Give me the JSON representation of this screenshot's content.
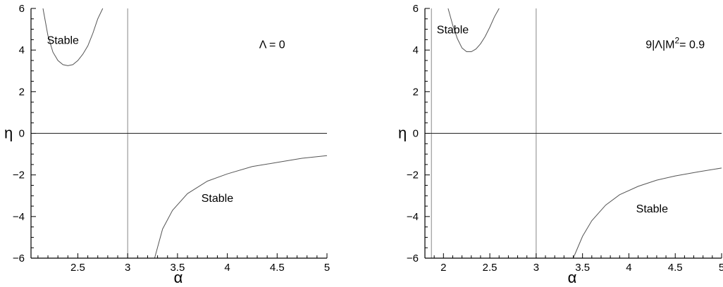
{
  "chart_data": [
    {
      "type": "line",
      "xlabel": "α",
      "ylabel": "η",
      "xlim": [
        2.03,
        5.0
      ],
      "ylim": [
        -6,
        6
      ],
      "x_ticks": [
        2.5,
        3,
        3.5,
        4,
        4.5,
        5
      ],
      "x_tick_labels": [
        "2.5",
        "3",
        "3.5",
        "4",
        "4.5",
        "5"
      ],
      "y_ticks": [
        -6,
        -4,
        -2,
        0,
        2,
        4,
        6
      ],
      "y_tick_labels": [
        "−6",
        "−4",
        "−2",
        "0",
        "2",
        "4",
        "6"
      ],
      "reference_lines": {
        "vertical_x": 3,
        "horizontal_y": 0
      },
      "annotations": [
        {
          "text": "Stable",
          "x": 2.35,
          "y": 4.5
        },
        {
          "text": "Λ = 0",
          "x": 4.45,
          "y": 4.3
        },
        {
          "text": "Stable",
          "x": 3.9,
          "y": -3.1
        }
      ],
      "series": [
        {
          "points": [
            [
              2.15,
              6.0
            ],
            [
              2.2,
              4.7
            ],
            [
              2.25,
              3.9
            ],
            [
              2.3,
              3.5
            ],
            [
              2.35,
              3.3
            ],
            [
              2.4,
              3.25
            ],
            [
              2.45,
              3.3
            ],
            [
              2.5,
              3.5
            ],
            [
              2.55,
              3.8
            ],
            [
              2.6,
              4.2
            ],
            [
              2.65,
              4.8
            ],
            [
              2.7,
              5.5
            ],
            [
              2.75,
              6.0
            ]
          ]
        },
        {
          "points": [
            [
              3.27,
              -6.0
            ],
            [
              3.35,
              -4.6
            ],
            [
              3.45,
              -3.7
            ],
            [
              3.6,
              -2.9
            ],
            [
              3.8,
              -2.3
            ],
            [
              4.0,
              -1.95
            ],
            [
              4.25,
              -1.6
            ],
            [
              4.5,
              -1.4
            ],
            [
              4.75,
              -1.2
            ],
            [
              5.0,
              -1.07
            ]
          ]
        }
      ]
    },
    {
      "type": "line",
      "xlabel": "α",
      "ylabel": "η",
      "xlim": [
        1.8,
        5.0
      ],
      "ylim": [
        -6,
        6
      ],
      "x_ticks": [
        2,
        2.5,
        3,
        3.5,
        4,
        4.5,
        5
      ],
      "x_tick_labels": [
        "2",
        "2.5",
        "3",
        "3.5",
        "4",
        "4.5",
        "5"
      ],
      "y_ticks": [
        -6,
        -4,
        -2,
        0,
        2,
        4,
        6
      ],
      "y_tick_labels": [
        "−6",
        "−4",
        "−2",
        "0",
        "2",
        "4",
        "6"
      ],
      "reference_lines": {
        "vertical_x": 3,
        "horizontal_y": 0,
        "extra_vertical_x": 1.87
      },
      "annotations": [
        {
          "text": "Stable",
          "x": 2.1,
          "y": 5.0
        },
        {
          "text": "9|Λ|M",
          "sup": "2",
          "suffix": "= 0.9",
          "x": 4.5,
          "y": 4.3
        },
        {
          "text": "Stable",
          "x": 4.25,
          "y": -3.6
        }
      ],
      "series": [
        {
          "points": [
            [
              2.05,
              6.0
            ],
            [
              2.1,
              5.2
            ],
            [
              2.15,
              4.55
            ],
            [
              2.2,
              4.1
            ],
            [
              2.25,
              3.92
            ],
            [
              2.3,
              3.92
            ],
            [
              2.35,
              4.05
            ],
            [
              2.4,
              4.3
            ],
            [
              2.45,
              4.65
            ],
            [
              2.5,
              5.1
            ],
            [
              2.55,
              5.6
            ],
            [
              2.6,
              6.0
            ]
          ]
        },
        {
          "points": [
            [
              3.4,
              -6.0
            ],
            [
              3.5,
              -4.95
            ],
            [
              3.6,
              -4.2
            ],
            [
              3.75,
              -3.45
            ],
            [
              3.9,
              -2.95
            ],
            [
              4.1,
              -2.55
            ],
            [
              4.3,
              -2.25
            ],
            [
              4.5,
              -2.05
            ],
            [
              4.75,
              -1.85
            ],
            [
              5.0,
              -1.67
            ]
          ]
        }
      ]
    }
  ]
}
